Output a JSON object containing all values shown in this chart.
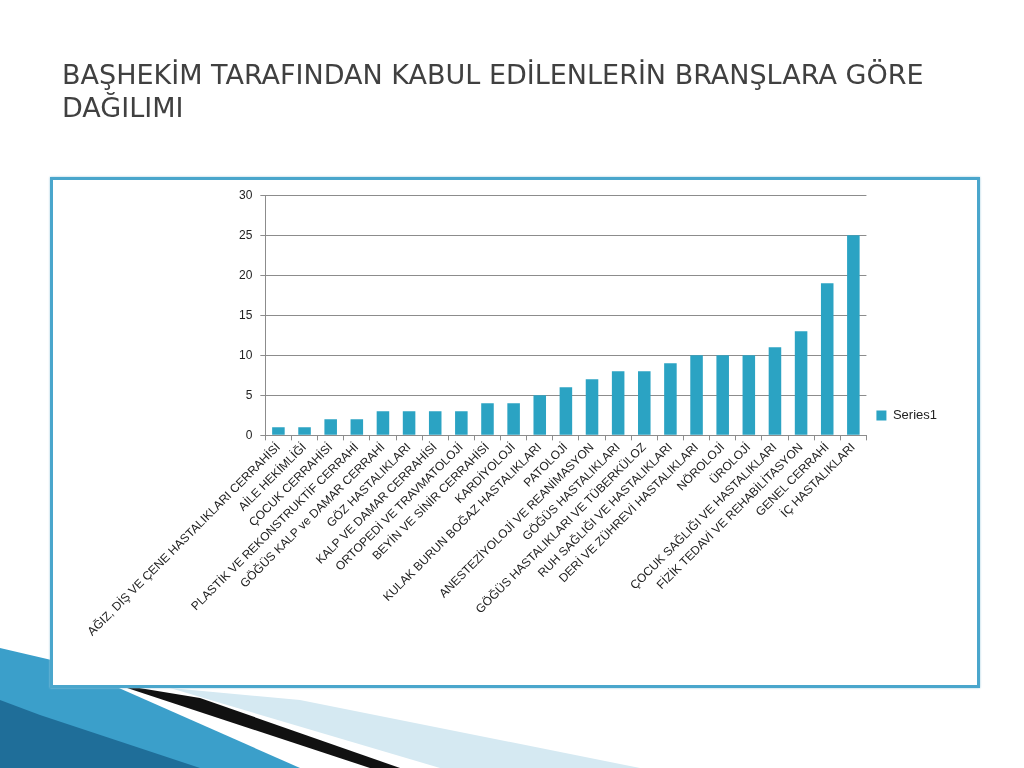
{
  "chart_data": {
    "type": "bar",
    "title": "BAŞHEKİM TARAFINDAN KABUL EDİLENLERİN BRANŞLARA GÖRE DAĞILIMI",
    "categories": [
      "AĞIZ, DİŞ VE ÇENE HASTALIKLARI CERRAHİSİ",
      "AİLE HEKİMLİĞİ",
      "ÇOCUK CERRAHİSİ",
      "PLASTİK VE REKONSTRUKTİF CERRAHİ",
      "GÖĞÜS KALP ve DAMAR CERRAHİ",
      "GÖZ HASTALIKLARI",
      "KALP VE DAMAR CERRAHİSİ",
      "ORTOPEDİ VE TRAVMATOLOJİ",
      "BEYİN VE SİNİR CERRAHİSİ",
      "KARDİYOLOJİ",
      "KULAK BURUN BOĞAZ HASTALIKLARI",
      "PATOLOJİ",
      "ANESTEZİYOLOJİ VE REANİMASYON",
      "GÖĞÜS HASTALIKLARI",
      "GÖĞÜS HASTALIKLARI VE TÜBERKÜLOZ",
      "RUH SAĞLIĞI VE HASTALIKLARI",
      "DERİ VE ZÜHREVİ HASTALIKLARI",
      "NÖROLOJİ",
      "ÜROLOJİ",
      "ÇOCUK SAĞLIĞI VE HASTALIKLARI",
      "FİZİK TEDAVİ VE REHABİLİTASYON",
      "GENEL CERRAHİ",
      "İÇ HASTALIKLARI"
    ],
    "series": [
      {
        "name": "Series1",
        "color": "#2ba3c3",
        "values": [
          1,
          1,
          2,
          2,
          3,
          3,
          3,
          3,
          4,
          4,
          5,
          6,
          7,
          8,
          8,
          9,
          10,
          10,
          10,
          11,
          13,
          19,
          25
        ]
      }
    ],
    "ylim": [
      0,
      30
    ],
    "yticks": [
      0,
      5,
      10,
      15,
      20,
      25,
      30
    ],
    "grid": "y",
    "legend": "right"
  }
}
